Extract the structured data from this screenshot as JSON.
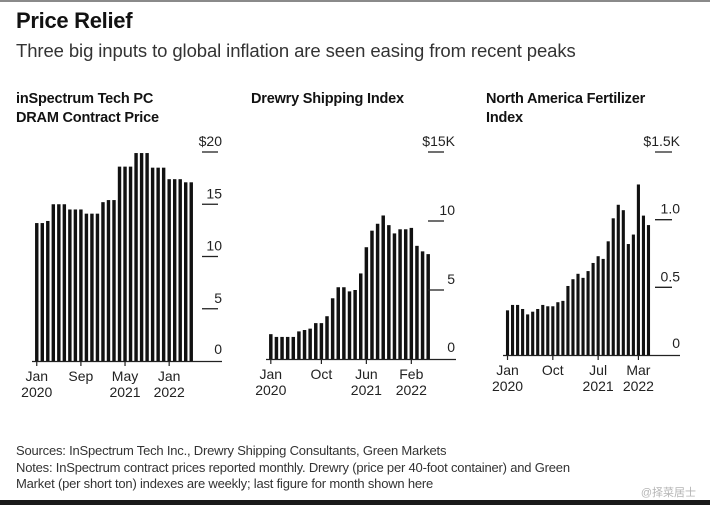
{
  "header": {
    "title": "Price Relief",
    "subtitle": "Three big inputs to global inflation are seen easing from recent peaks"
  },
  "chart_data": [
    {
      "type": "bar",
      "title": "inSpectrum Tech PC DRAM Contract Price",
      "title_lines": [
        "inSpectrum Tech PC",
        "DRAM Contract Price"
      ],
      "xlabel": "",
      "ylabel": "",
      "unit_prefix": "$",
      "frequency": "monthly",
      "x_start": "Jan 2020",
      "x_end": "May 2022",
      "ylim": [
        0,
        20
      ],
      "y_ticks": [
        0,
        5,
        10,
        15,
        20
      ],
      "y_tick_labels": [
        "0",
        "5",
        "10",
        "15",
        "$20"
      ],
      "x_ticks": [
        {
          "index": 0,
          "line1": "Jan",
          "line2": "2020"
        },
        {
          "index": 8,
          "line1": "Sep",
          "line2": ""
        },
        {
          "index": 16,
          "line1": "May",
          "line2": "2021"
        },
        {
          "index": 24,
          "line1": "Jan",
          "line2": "2022"
        }
      ],
      "grid": false,
      "values": [
        13.2,
        13.2,
        13.4,
        15.0,
        15.0,
        15.0,
        14.5,
        14.5,
        14.5,
        14.1,
        14.1,
        14.1,
        15.2,
        15.4,
        15.4,
        18.6,
        18.6,
        18.6,
        19.9,
        19.9,
        19.9,
        18.5,
        18.5,
        18.5,
        17.4,
        17.4,
        17.4,
        17.1,
        17.1
      ]
    },
    {
      "type": "bar",
      "title": "Drewry Shipping Index",
      "title_lines": [
        "Drewry Shipping Index"
      ],
      "xlabel": "",
      "ylabel": "",
      "unit": "$K per 40-foot container",
      "frequency": "monthly (last weekly figure)",
      "x_start": "Jan 2020",
      "x_end": "May 2022",
      "ylim": [
        0,
        15
      ],
      "y_ticks": [
        0,
        5,
        10,
        15
      ],
      "y_tick_labels": [
        "0",
        "5",
        "10",
        "$15K"
      ],
      "x_ticks": [
        {
          "index": 0,
          "line1": "Jan",
          "line2": "2020"
        },
        {
          "index": 9,
          "line1": "Oct",
          "line2": ""
        },
        {
          "index": 17,
          "line1": "Jun",
          "line2": "2021"
        },
        {
          "index": 25,
          "line1": "Feb",
          "line2": "2022"
        }
      ],
      "grid": false,
      "values": [
        1.8,
        1.6,
        1.6,
        1.6,
        1.6,
        2.0,
        2.1,
        2.2,
        2.6,
        2.6,
        3.1,
        4.4,
        5.2,
        5.2,
        4.9,
        5.0,
        6.2,
        8.1,
        9.3,
        9.8,
        10.4,
        9.7,
        9.1,
        9.4,
        9.4,
        9.5,
        8.2,
        7.8,
        7.6
      ]
    },
    {
      "type": "bar",
      "title": "North America Fertilizer Index",
      "title_lines": [
        "North America Fertilizer",
        "Index"
      ],
      "xlabel": "",
      "ylabel": "",
      "unit": "$K per short ton",
      "frequency": "monthly (last weekly figure)",
      "x_start": "Jan 2020",
      "x_end": "May 2022",
      "ylim": [
        0,
        1.5
      ],
      "y_ticks": [
        0,
        0.5,
        1.0,
        1.5
      ],
      "y_tick_labels": [
        "0",
        "0.5",
        "1.0",
        "$1.5K"
      ],
      "x_ticks": [
        {
          "index": 0,
          "line1": "Jan",
          "line2": "2020"
        },
        {
          "index": 9,
          "line1": "Oct",
          "line2": ""
        },
        {
          "index": 18,
          "line1": "Jul",
          "line2": "2021"
        },
        {
          "index": 26,
          "line1": "Mar",
          "line2": "2022"
        }
      ],
      "grid": false,
      "values": [
        0.33,
        0.37,
        0.37,
        0.34,
        0.3,
        0.32,
        0.34,
        0.37,
        0.36,
        0.36,
        0.39,
        0.4,
        0.51,
        0.56,
        0.6,
        0.57,
        0.62,
        0.68,
        0.73,
        0.71,
        0.84,
        1.01,
        1.11,
        1.07,
        0.82,
        0.89,
        1.26,
        1.03,
        0.96
      ]
    }
  ],
  "footer": {
    "sources": "Sources: InSpectrum Tech Inc., Drewry Shipping Consultants, Green Markets",
    "notes_line1": "Notes: InSpectrum contract prices reported monthly. Drewry (price per 40-foot container) and Green",
    "notes_line2": "Market (per short ton) indexes are weekly; last figure for month shown here",
    "watermark": "@择菜居士"
  },
  "colors": {
    "bar": "#111111",
    "axis": "#222222",
    "text": "#222222",
    "background": "#ffffff"
  }
}
